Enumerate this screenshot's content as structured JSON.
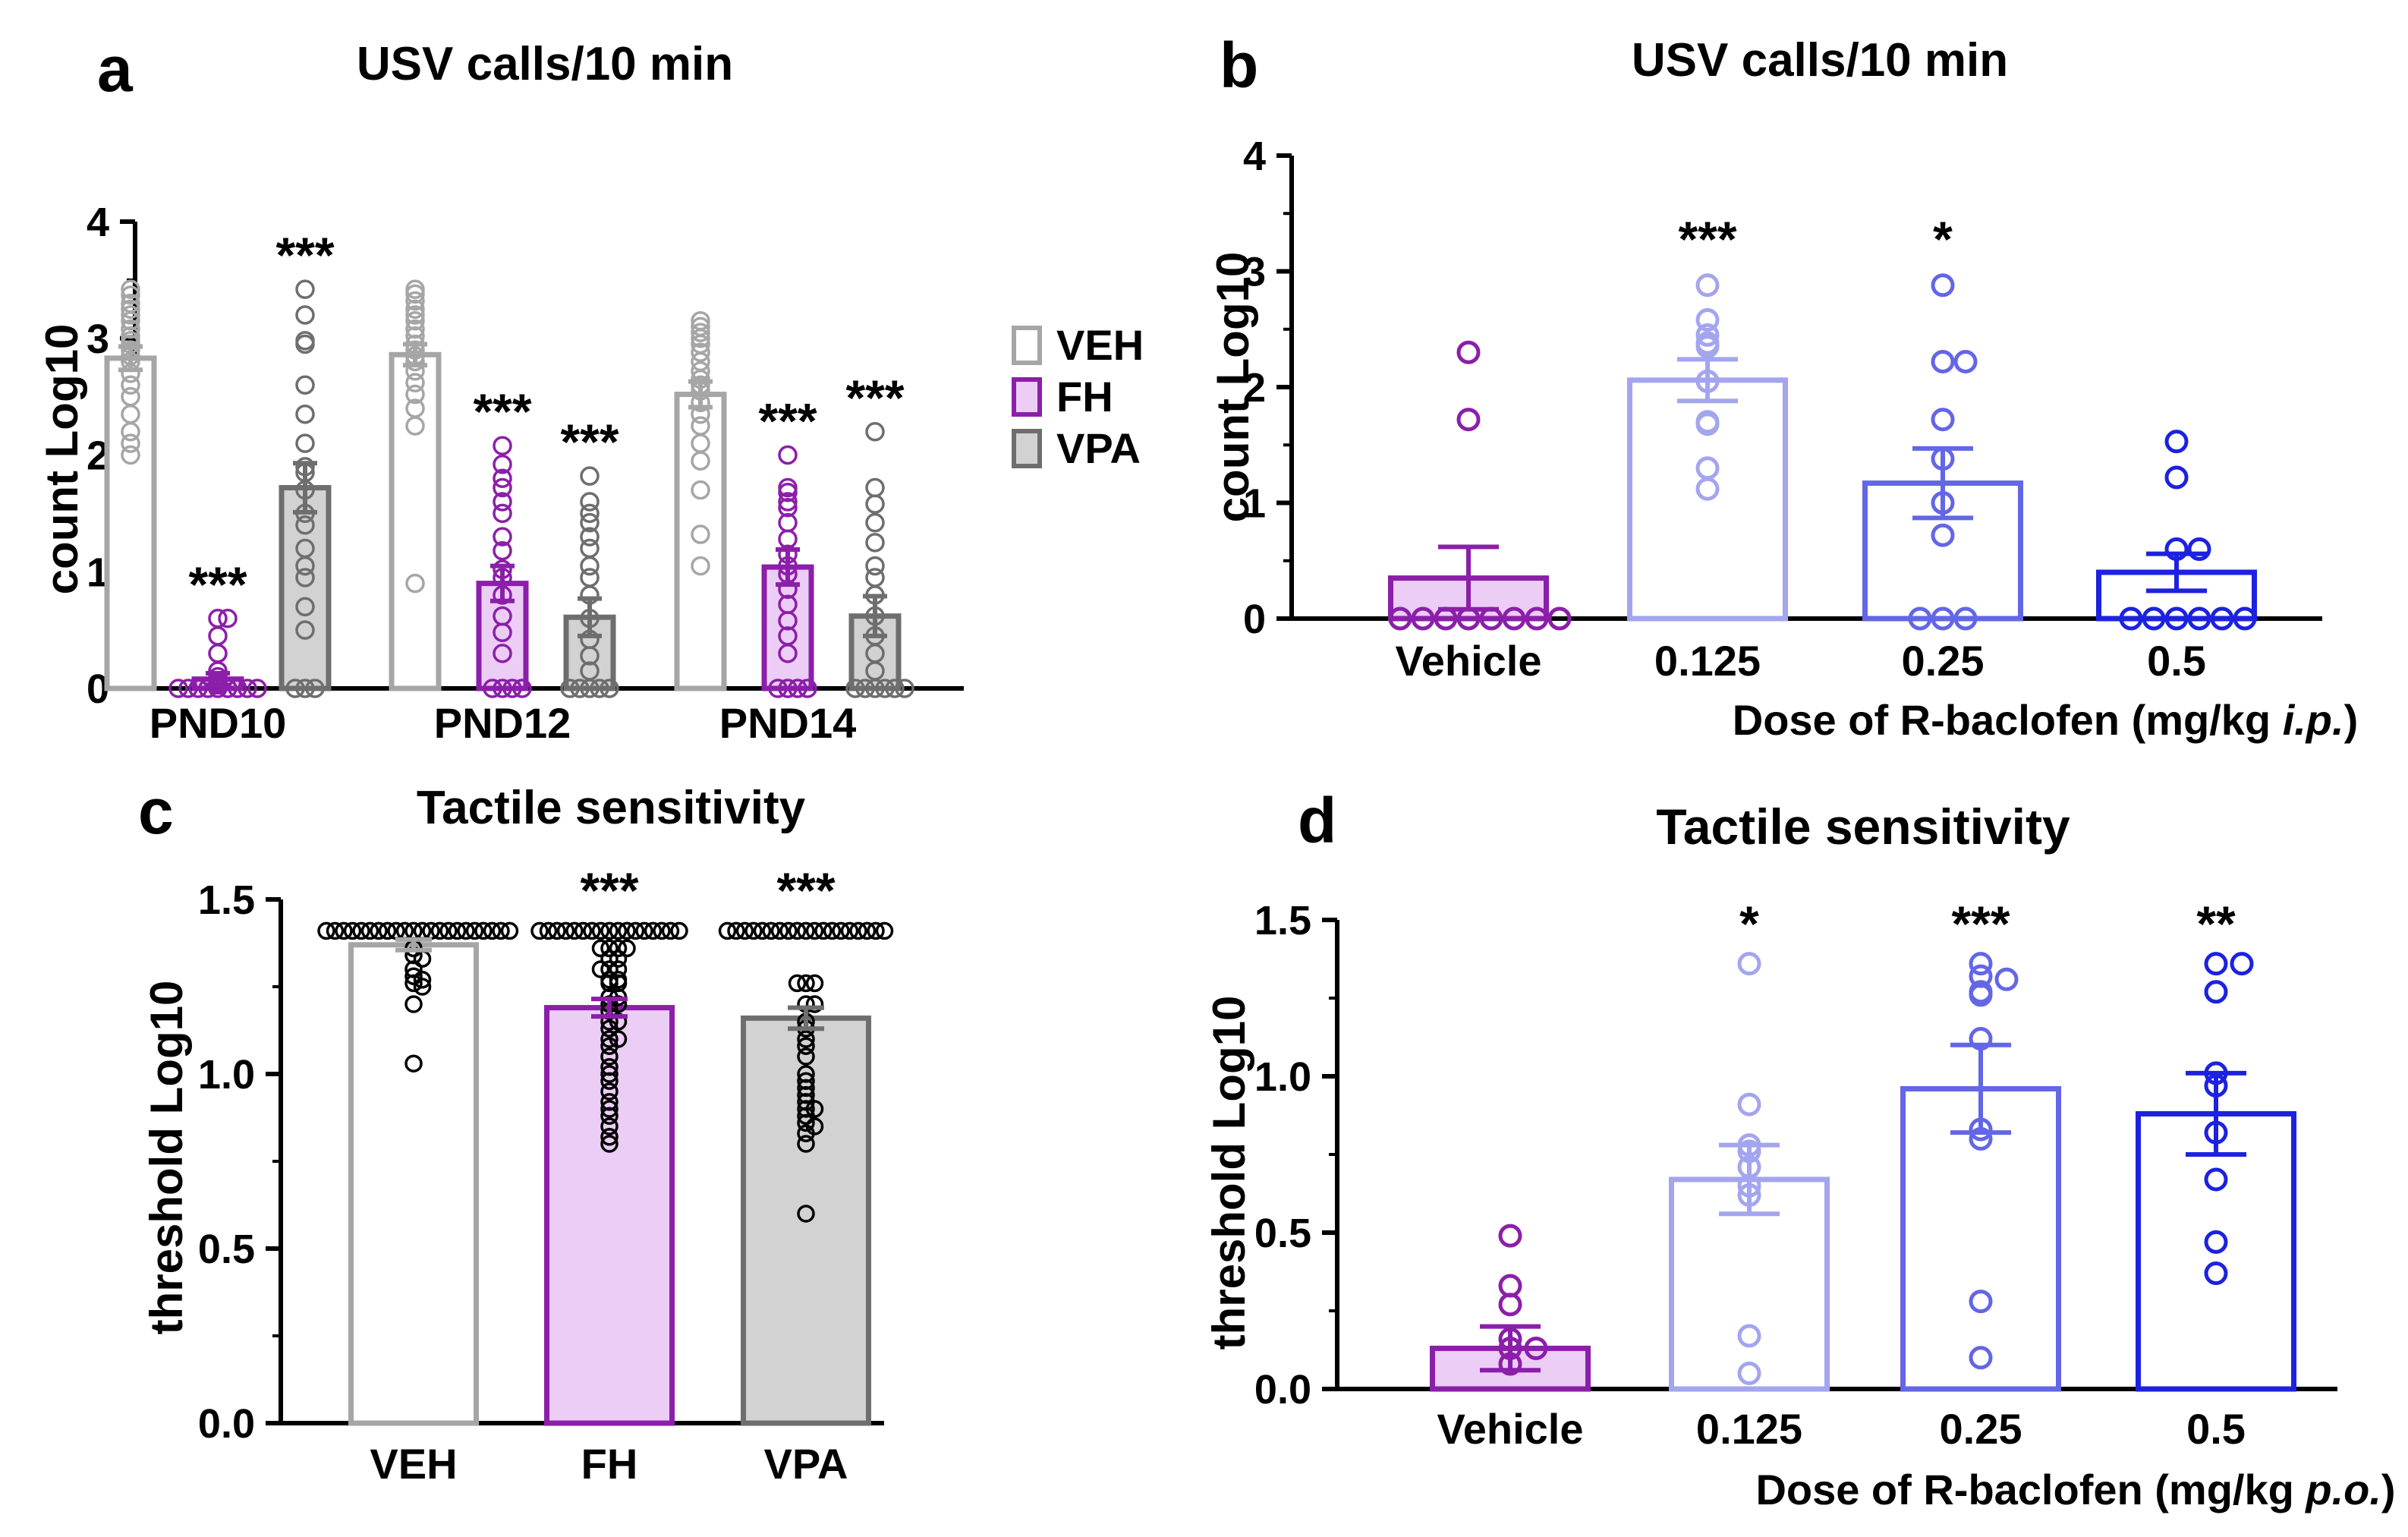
{
  "colors": {
    "veh": "#a6a6a6",
    "fh": "#8b1fa9",
    "fh_fill": "#ebcdf5",
    "vpa": "#6e6e6e",
    "vpa_fill": "#d2d2d2",
    "dose_0125": "#a3a5ee",
    "dose_025": "#6366e6",
    "dose_05": "#1c22df"
  },
  "chart_data": [
    {
      "panel": "a",
      "type": "bar",
      "title": "USV calls/10 min",
      "ylabel": "count Log10",
      "xlabel": "",
      "ylim": [
        0,
        4
      ],
      "yticks": [
        "0",
        "1",
        "2",
        "3",
        "4"
      ],
      "categories": [
        "PND10",
        "PND12",
        "PND14"
      ],
      "legend": {
        "placement": "right",
        "entries": [
          "VEH",
          "FH",
          "VPA"
        ]
      },
      "series": [
        {
          "name": "VEH",
          "values": [
            2.83,
            2.86,
            2.52
          ],
          "sem": [
            0.1,
            0.09,
            0.11
          ],
          "annotations": [
            "",
            "",
            ""
          ],
          "points": [
            [
              3.42,
              3.37,
              3.3,
              3.25,
              3.2,
              3.15,
              3.08,
              3.02,
              2.98,
              2.95,
              2.9,
              2.85,
              2.8,
              2.7,
              2.6,
              2.5,
              2.35,
              2.2,
              2.1,
              2.0
            ],
            [
              3.42,
              3.38,
              3.32,
              3.25,
              3.2,
              3.15,
              3.08,
              3.02,
              2.95,
              2.9,
              2.85,
              2.8,
              2.72,
              2.62,
              2.52,
              2.4,
              2.25,
              0.9
            ],
            [
              3.15,
              3.1,
              3.05,
              3.0,
              2.95,
              2.88,
              2.8,
              2.72,
              2.65,
              2.6,
              2.55,
              2.45,
              2.35,
              2.25,
              2.1,
              1.95,
              1.7,
              1.32,
              1.05
            ]
          ]
        },
        {
          "name": "FH",
          "values": [
            0.08,
            0.9,
            1.04
          ],
          "sem": [
            0.05,
            0.15,
            0.15
          ],
          "annotations": [
            "***",
            "***",
            "***"
          ],
          "points": [
            [
              0.6,
              0.6,
              0.45,
              0.3,
              0.15,
              0.1,
              0.05,
              0.03,
              0,
              0,
              0,
              0,
              0,
              0,
              0,
              0,
              0
            ],
            [
              2.08,
              1.92,
              1.8,
              1.72,
              1.6,
              1.5,
              1.3,
              1.18,
              1.02,
              0.95,
              0.8,
              0.62,
              0.48,
              0.3,
              0,
              0,
              0,
              0
            ],
            [
              2.0,
              1.72,
              1.68,
              1.6,
              1.55,
              1.42,
              1.28,
              1.15,
              1.05,
              0.98,
              0.85,
              0.72,
              0.58,
              0.45,
              0.3,
              0,
              0,
              0,
              0
            ]
          ]
        },
        {
          "name": "VPA",
          "values": [
            1.72,
            0.61,
            0.62
          ],
          "sem": [
            0.21,
            0.16,
            0.17
          ],
          "annotations": [
            "***",
            "***",
            "***"
          ],
          "points": [
            [
              3.42,
              3.2,
              2.98,
              2.95,
              2.6,
              2.35,
              2.1,
              1.9,
              1.85,
              1.7,
              1.5,
              1.4,
              1.2,
              1.05,
              0.95,
              0.7,
              0.5,
              0,
              0,
              0
            ],
            [
              1.82,
              1.6,
              1.5,
              1.42,
              1.3,
              1.2,
              1.05,
              0.95,
              0.8,
              0.6,
              0.42,
              0.28,
              0.15,
              0,
              0,
              0,
              0,
              0
            ],
            [
              2.2,
              1.72,
              1.58,
              1.42,
              1.25,
              1.05,
              0.95,
              0.8,
              0.62,
              0.45,
              0.3,
              0.15,
              0,
              0,
              0,
              0,
              0,
              0
            ]
          ]
        }
      ]
    },
    {
      "panel": "b",
      "type": "bar",
      "title": "USV calls/10 min",
      "ylabel": "count Log10",
      "xlabel_parts": [
        "Dose of R-baclofen (mg/kg ",
        "i.p.",
        ")"
      ],
      "ylim": [
        0,
        4
      ],
      "yticks": [
        "0",
        "1",
        "2",
        "3",
        "4"
      ],
      "categories": [
        "Vehicle",
        "0.125",
        "0.25",
        "0.5"
      ],
      "values": [
        0.35,
        2.06,
        1.17,
        0.4
      ],
      "sem": [
        0.27,
        0.18,
        0.3,
        0.16
      ],
      "annotations": [
        "",
        "***",
        "*",
        ""
      ],
      "points": [
        [
          2.3,
          1.72,
          0,
          0,
          0,
          0,
          0,
          0,
          0,
          0
        ],
        [
          2.88,
          2.58,
          2.45,
          2.38,
          2.35,
          2.05,
          1.7,
          1.68,
          1.3,
          1.12
        ],
        [
          2.88,
          2.22,
          2.22,
          1.72,
          1.38,
          1.0,
          0.72,
          0,
          0,
          0
        ],
        [
          1.53,
          1.22,
          0.6,
          0.6,
          0,
          0,
          0,
          0,
          0,
          0
        ]
      ]
    },
    {
      "panel": "c",
      "type": "bar",
      "title": "Tactile sensitivity",
      "ylabel": "threshold Log10",
      "xlabel": "",
      "ylim": [
        0,
        1.5
      ],
      "yticks": [
        "0.0",
        "0.5",
        "1.0",
        "1.5"
      ],
      "categories": [
        "VEH",
        "FH",
        "VPA"
      ],
      "values": [
        1.37,
        1.19,
        1.16
      ],
      "sem": [
        0.015,
        0.025,
        0.03
      ],
      "annotations": [
        "",
        "***",
        "***"
      ],
      "points": [
        [
          1.41,
          1.41,
          1.41,
          1.41,
          1.41,
          1.41,
          1.41,
          1.41,
          1.41,
          1.41,
          1.41,
          1.41,
          1.41,
          1.41,
          1.41,
          1.41,
          1.41,
          1.41,
          1.41,
          1.41,
          1.41,
          1.41,
          1.36,
          1.34,
          1.33,
          1.3,
          1.28,
          1.27,
          1.26,
          1.25,
          1.2,
          1.03
        ],
        [
          1.41,
          1.41,
          1.41,
          1.41,
          1.41,
          1.41,
          1.41,
          1.41,
          1.41,
          1.41,
          1.41,
          1.41,
          1.41,
          1.41,
          1.41,
          1.41,
          1.41,
          1.36,
          1.36,
          1.36,
          1.36,
          1.33,
          1.33,
          1.3,
          1.3,
          1.3,
          1.27,
          1.27,
          1.26,
          1.26,
          1.22,
          1.22,
          1.2,
          1.2,
          1.18,
          1.15,
          1.15,
          1.13,
          1.1,
          1.1,
          1.08,
          1.05,
          1.02,
          1.0,
          0.98,
          0.95,
          0.92,
          0.9,
          0.88,
          0.85,
          0.82,
          0.8
        ],
        [
          1.41,
          1.41,
          1.41,
          1.41,
          1.41,
          1.41,
          1.41,
          1.41,
          1.41,
          1.41,
          1.41,
          1.41,
          1.41,
          1.41,
          1.41,
          1.41,
          1.41,
          1.41,
          1.41,
          1.26,
          1.26,
          1.26,
          1.2,
          1.2,
          1.15,
          1.13,
          1.1,
          1.08,
          1.05,
          1.0,
          0.98,
          0.96,
          0.94,
          0.92,
          0.9,
          0.9,
          0.88,
          0.86,
          0.85,
          0.83,
          0.8,
          0.6
        ]
      ]
    },
    {
      "panel": "d",
      "type": "bar",
      "title": "Tactile sensitivity",
      "ylabel": "threshold Log10",
      "xlabel_parts": [
        "Dose of R-baclofen (mg/kg ",
        "p.o.",
        ")"
      ],
      "ylim": [
        0,
        1.5
      ],
      "yticks": [
        "0.0",
        "0.5",
        "1.0",
        "1.5"
      ],
      "categories": [
        "Vehicle",
        "0.125",
        "0.25",
        "0.5"
      ],
      "values": [
        0.13,
        0.67,
        0.96,
        0.88
      ],
      "sem": [
        0.07,
        0.11,
        0.14,
        0.13
      ],
      "annotations": [
        "",
        "*",
        "***",
        "**"
      ],
      "points": [
        [
          0.49,
          0.33,
          0.27,
          0.16,
          0.13,
          0.13,
          0.08
        ],
        [
          1.36,
          0.91,
          0.78,
          0.76,
          0.71,
          0.65,
          0.62,
          0.17,
          0.05
        ],
        [
          1.36,
          1.32,
          1.31,
          1.27,
          1.26,
          1.12,
          0.83,
          0.8,
          0.28,
          0.1
        ],
        [
          1.36,
          1.36,
          1.27,
          1.01,
          0.97,
          0.82,
          0.67,
          0.47,
          0.37
        ]
      ]
    }
  ],
  "panel_letters": [
    "a",
    "b",
    "c",
    "d"
  ]
}
